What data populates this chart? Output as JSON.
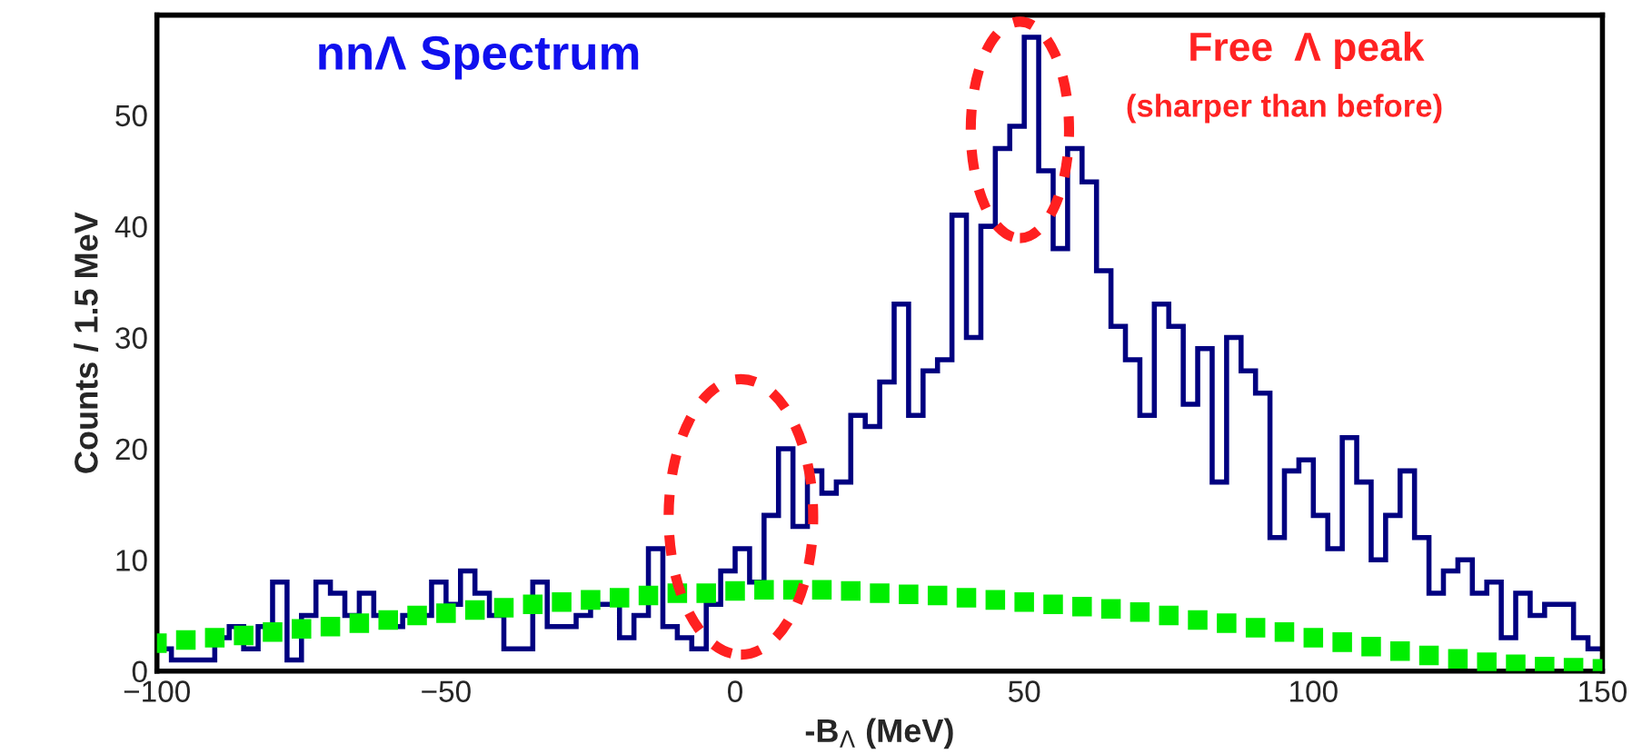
{
  "chart_data": {
    "type": "histogram",
    "title": "nnΛ Spectrum",
    "xlabel": "-B$_{Λ}$ (MeV)",
    "ylabel": "Counts / 1.5 MeV",
    "annotations": [
      "Free  Λ peak",
      "(sharper than before)"
    ],
    "bins": [
      -100,
      -97.5,
      -95,
      -92.5,
      -90,
      -87.5,
      -85,
      -82.5,
      -80,
      -77.5,
      -75,
      -72.5,
      -70,
      -67.5,
      -65,
      -62.5,
      -60,
      -57.5,
      -55,
      -52.5,
      -50,
      -47.5,
      -45,
      -42.5,
      -40,
      -37.5,
      -35,
      -32.5,
      -30,
      -27.5,
      -25,
      -22.5,
      -20,
      -17.5,
      -15,
      -12.5,
      -10,
      -7.5,
      -5,
      -2.5,
      0,
      2.5,
      5,
      7.5,
      10,
      12.5,
      15,
      17.5,
      20,
      22.5,
      25,
      27.5,
      30,
      32.5,
      35,
      37.5,
      40,
      42.5,
      45,
      47.5,
      50,
      52.5,
      55,
      57.5,
      60,
      62.5,
      65,
      67.5,
      70,
      72.5,
      75,
      77.5,
      80,
      82.5,
      85,
      87.5,
      90,
      92.5,
      95,
      97.5,
      100,
      102.5,
      105,
      107.5,
      110,
      112.5,
      115,
      117.5,
      120,
      122.5,
      125,
      127.5,
      130,
      132.5,
      135,
      137.5,
      140,
      142.5,
      145,
      147.5,
      150
    ],
    "values": [
      2,
      1,
      1,
      1,
      3,
      4,
      2,
      4,
      8,
      1,
      5,
      8,
      7,
      5,
      7,
      5,
      4,
      5,
      5,
      8,
      6,
      9,
      7,
      5,
      2,
      2,
      8,
      4,
      4,
      5,
      6,
      6,
      3,
      5,
      11,
      4,
      3,
      2,
      6,
      9,
      11,
      8,
      14,
      20,
      13,
      18,
      16,
      17,
      23,
      22,
      26,
      33,
      23,
      27,
      28,
      41,
      30,
      40,
      47,
      49,
      57,
      45,
      38,
      47,
      44,
      36,
      31,
      28,
      23,
      33,
      31,
      24,
      29,
      17,
      30,
      27,
      25,
      12,
      18,
      19,
      14,
      11,
      21,
      17,
      10,
      14,
      18,
      12,
      7,
      9,
      10,
      7,
      8,
      3,
      7,
      5,
      6,
      6,
      3,
      2
    ],
    "color": "#000080",
    "series": [
      {
        "type": "scatter",
        "color": "#00ee00",
        "marker": "square",
        "x": [
          -100,
          -95,
          -90,
          -85,
          -80,
          -75,
          -70,
          -65,
          -60,
          -55,
          -50,
          -45,
          -40,
          -35,
          -30,
          -25,
          -20,
          -15,
          -10,
          -5,
          0,
          5,
          10,
          15,
          20,
          25,
          30,
          35,
          40,
          45,
          50,
          55,
          60,
          65,
          70,
          75,
          80,
          85,
          90,
          95,
          100,
          105,
          110,
          115,
          120,
          125,
          130,
          135,
          140,
          145,
          150
        ],
        "values": [
          2.5,
          2.8,
          3,
          3.2,
          3.5,
          3.8,
          4,
          4.3,
          4.6,
          5,
          5.2,
          5.5,
          5.7,
          6,
          6.2,
          6.4,
          6.6,
          6.8,
          7,
          7,
          7.2,
          7.3,
          7.3,
          7.3,
          7.2,
          7,
          6.9,
          6.8,
          6.6,
          6.4,
          6.2,
          6,
          5.8,
          5.6,
          5.3,
          5,
          4.6,
          4.3,
          3.9,
          3.5,
          3,
          2.6,
          2.2,
          1.8,
          1.4,
          1.1,
          0.8,
          0.6,
          0.4,
          0.3,
          0.2
        ]
      }
    ],
    "xlim": [
      -100,
      150
    ],
    "xticks": [
      -100,
      -50,
      0,
      50,
      100,
      150
    ],
    "ylim": [
      0,
      59
    ],
    "yticks": [
      0,
      10,
      20,
      30,
      40,
      50
    ],
    "grid": false,
    "legend": false
  }
}
